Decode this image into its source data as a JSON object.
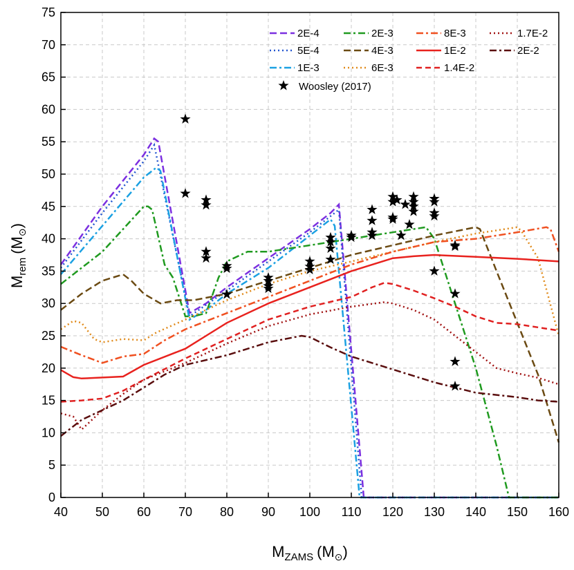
{
  "chart_data": {
    "type": "line",
    "x_label": [
      "M",
      "ZAMS",
      "(M",
      "⊙",
      ")"
    ],
    "y_label": [
      "M",
      "rem",
      "(M",
      "⊙",
      ")"
    ],
    "xlim": [
      40,
      160
    ],
    "ylim": [
      0,
      75
    ],
    "xticks": [
      40,
      50,
      60,
      70,
      80,
      90,
      100,
      110,
      120,
      130,
      140,
      150,
      160
    ],
    "yticks": [
      0,
      5,
      10,
      15,
      20,
      25,
      30,
      35,
      40,
      45,
      50,
      55,
      60,
      65,
      70,
      75
    ],
    "grid": true,
    "legend": "top-right",
    "series": [
      {
        "name": "2E-4",
        "color": "#7b2fe0",
        "dash": "dash",
        "x": [
          40,
          50,
          60,
          62.5,
          63.5,
          71,
          75,
          80,
          90,
          100,
          105,
          107,
          113,
          160
        ],
        "values": [
          36,
          45,
          53,
          55.5,
          55,
          28.5,
          30,
          32.5,
          37,
          41.5,
          44,
          45.3,
          0,
          0
        ]
      },
      {
        "name": "5E-4",
        "color": "#2255d0",
        "dash": "dot",
        "x": [
          40,
          50,
          60,
          62.5,
          71,
          80,
          90,
          100,
          106,
          107,
          112.5,
          160
        ],
        "values": [
          35.5,
          44,
          52,
          54.5,
          28,
          32,
          36.5,
          41,
          44,
          44.5,
          0,
          0
        ]
      },
      {
        "name": "1E-3",
        "color": "#1ba1e2",
        "dash": "dashdot",
        "x": [
          40,
          50,
          60,
          63,
          64,
          71,
          75,
          80,
          90,
          100,
          105,
          106,
          112,
          160
        ],
        "values": [
          34.5,
          42,
          49.5,
          51,
          50.5,
          27.5,
          29,
          31.5,
          35.5,
          40.5,
          43,
          42,
          0,
          0
        ]
      },
      {
        "name": "2E-3",
        "color": "#1f9a1f",
        "dash": "dashdot",
        "x": [
          40,
          50,
          55,
          60,
          61,
          62,
          65,
          67,
          70,
          72,
          75,
          78,
          80,
          85,
          90,
          95,
          100,
          110,
          120,
          128,
          130,
          135,
          140,
          145,
          148,
          160
        ],
        "values": [
          33,
          38,
          41.5,
          45,
          45,
          44.5,
          36,
          34,
          28,
          28,
          28.5,
          34,
          36.5,
          38,
          38,
          38.5,
          39,
          40,
          41,
          41.8,
          40,
          30,
          20,
          8,
          0,
          0
        ]
      },
      {
        "name": "4E-3",
        "color": "#6b4a12",
        "dash": "dash",
        "x": [
          40,
          45,
          50,
          55,
          57,
          60,
          64,
          68,
          72,
          80,
          90,
          100,
          110,
          120,
          130,
          140,
          141,
          145,
          150,
          155,
          160
        ],
        "values": [
          29,
          31.5,
          33.5,
          34.5,
          33.5,
          31.5,
          30,
          30.5,
          30.5,
          31.5,
          33.5,
          35.5,
          37.5,
          39,
          40.5,
          41.8,
          41.5,
          35,
          27,
          19,
          8.5
        ]
      },
      {
        "name": "6E-3",
        "color": "#e08a1a",
        "dash": "dot",
        "x": [
          40,
          43,
          45,
          48,
          50,
          55,
          60,
          63,
          70,
          80,
          90,
          100,
          110,
          120,
          130,
          140,
          150,
          151,
          155,
          160
        ],
        "values": [
          26,
          27.3,
          27,
          24.5,
          24,
          24.5,
          24.3,
          25.5,
          27.5,
          30.5,
          33,
          35,
          36.5,
          38,
          39.5,
          40.8,
          41.8,
          41.2,
          37,
          25
        ]
      },
      {
        "name": "8E-3",
        "color": "#f05020",
        "dash": "dashdot",
        "x": [
          40,
          45,
          50,
          55,
          60,
          65,
          70,
          80,
          90,
          100,
          110,
          120,
          130,
          140,
          150,
          157,
          158,
          160
        ],
        "values": [
          23.3,
          22,
          20.8,
          21.8,
          22.2,
          24.3,
          26,
          28.5,
          31,
          33.5,
          36,
          38,
          39.5,
          40,
          41,
          41.8,
          41.5,
          38
        ]
      },
      {
        "name": "1E-2",
        "color": "#e8221e",
        "dash": "solid",
        "x": [
          40,
          43,
          45,
          55,
          60,
          70,
          75,
          80,
          90,
          100,
          110,
          120,
          125,
          130,
          140,
          150,
          160
        ],
        "values": [
          19.7,
          18.6,
          18.4,
          18.7,
          20.5,
          23,
          25,
          27,
          30,
          32.5,
          35,
          37,
          37.3,
          37.5,
          37.2,
          36.9,
          36.5
        ]
      },
      {
        "name": "1.4E-2",
        "color": "#e02020",
        "dash": "shortdash",
        "x": [
          40,
          45,
          50,
          55,
          60,
          70,
          80,
          90,
          100,
          110,
          115,
          118,
          120,
          125,
          130,
          135,
          140,
          145,
          150,
          155,
          160
        ],
        "values": [
          14.8,
          15,
          15.3,
          16.5,
          18.2,
          21.5,
          24.5,
          27.5,
          29.5,
          31,
          32.5,
          33.2,
          33,
          32,
          30.8,
          29.5,
          28,
          27,
          26.8,
          26.3,
          25.8
        ]
      },
      {
        "name": "1.7E-2",
        "color": "#a01010",
        "dash": "dot",
        "x": [
          40,
          43,
          45,
          50,
          55,
          60,
          70,
          80,
          90,
          100,
          110,
          118,
          120,
          125,
          130,
          135,
          140,
          145,
          150,
          155,
          160
        ],
        "values": [
          13,
          12.5,
          10.5,
          13.5,
          16,
          18.2,
          20.8,
          23.8,
          26.5,
          28.3,
          29.5,
          30.2,
          30,
          29,
          27.5,
          25,
          22.5,
          20,
          19.2,
          18.5,
          17.5
        ]
      },
      {
        "name": "2E-2",
        "color": "#5a0e0e",
        "dash": "dashdot",
        "x": [
          40,
          45,
          50,
          55,
          60,
          65,
          70,
          80,
          90,
          98,
          100,
          105,
          110,
          120,
          130,
          140,
          150,
          155,
          160
        ],
        "values": [
          9.5,
          12,
          13.5,
          15,
          17,
          19,
          20.5,
          22,
          24,
          25,
          24.8,
          23.2,
          21.8,
          19.8,
          17.8,
          16.2,
          15.5,
          15,
          14.8
        ]
      }
    ],
    "scatter": {
      "name": "Woosley (2017)",
      "color": "#000000",
      "x": [
        70,
        70,
        75,
        75,
        75,
        75,
        80,
        80,
        80,
        90,
        90,
        90,
        90,
        100,
        100,
        100,
        105,
        105,
        105,
        105,
        110,
        110,
        115,
        115,
        115,
        115,
        120,
        120,
        120,
        120,
        121,
        122,
        123,
        124,
        125,
        125,
        125,
        125,
        130,
        130,
        130,
        130,
        130,
        135,
        135,
        135,
        135,
        135
      ],
      "values": [
        58.5,
        47,
        46,
        45.2,
        38,
        37,
        35.8,
        35.4,
        31.4,
        34,
        33.5,
        32.7,
        32.3,
        36.5,
        35.7,
        35.2,
        40.2,
        39.5,
        38.5,
        36.8,
        40.5,
        40.2,
        44.5,
        42.8,
        41,
        40.5,
        46.5,
        45.7,
        43.3,
        43,
        46,
        40.5,
        45.3,
        42.2,
        46.5,
        45.7,
        45,
        44.2,
        46.2,
        45.7,
        44,
        43.5,
        35,
        39,
        38.8,
        31.5,
        21,
        17.2
      ]
    }
  }
}
